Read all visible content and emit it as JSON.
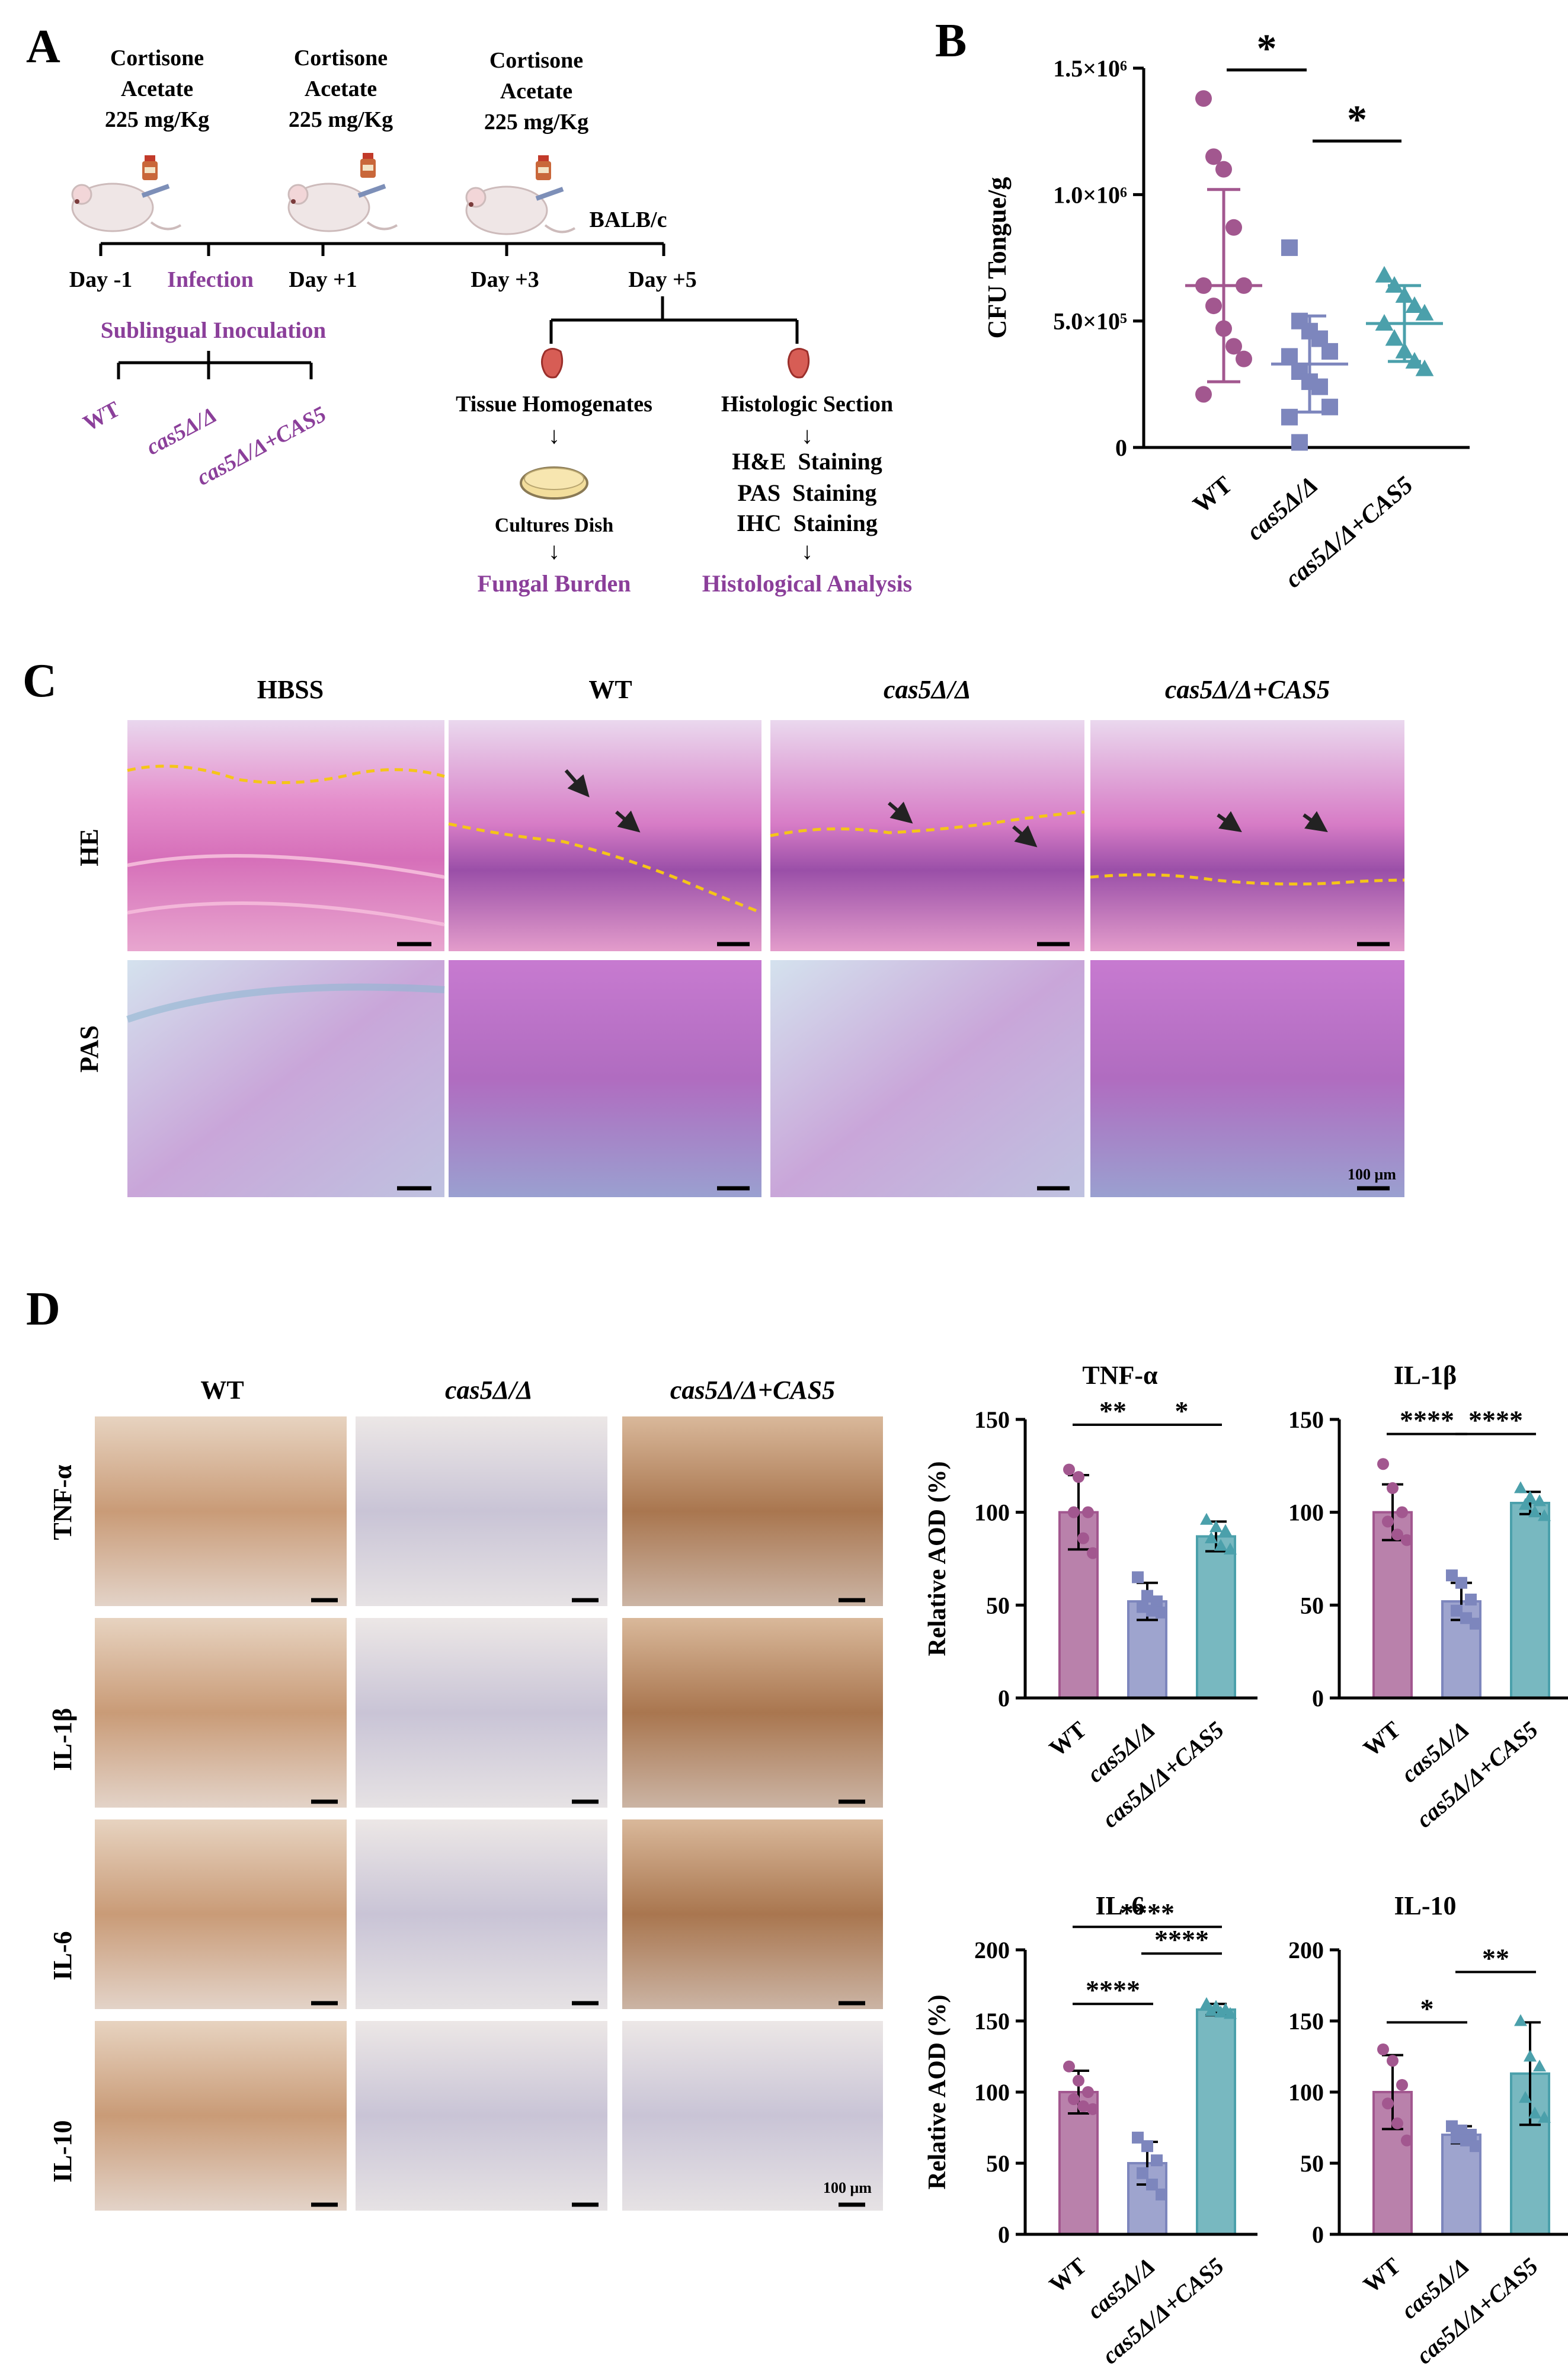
{
  "panel_letters": {
    "a": "A",
    "b": "B",
    "c": "C",
    "d": "D"
  },
  "colors": {
    "wt": "#a2578f",
    "mutant": "#7d86bd",
    "complement": "#4ba0ab",
    "purple_text": "#8b3f9a",
    "dashed_line": "#f5c518"
  },
  "panel_a": {
    "injections": [
      {
        "line1": "Cortisone",
        "line2": "Acetate",
        "line3": "225 mg/Kg"
      },
      {
        "line1": "Cortisone",
        "line2": "Acetate",
        "line3": "225 mg/Kg"
      },
      {
        "line1": "Cortisone",
        "line2": "Acetate",
        "line3": "225 mg/Kg"
      }
    ],
    "strain": "BALB/c",
    "days": [
      "Day -1",
      "Day +1",
      "Day +3",
      "Day +5"
    ],
    "infection": "Infection",
    "route": "Sublingual Inoculation",
    "groups": [
      "WT",
      "cas5Δ/Δ",
      "cas5Δ/Δ+CAS5"
    ],
    "left_branch": {
      "title": "Tissue Homogenates",
      "step": "Cultures Dish",
      "result": "Fungal Burden"
    },
    "right_branch": {
      "title": "Histologic Section",
      "steps": [
        "H&E  Staining",
        "PAS  Staining",
        "IHC  Staining"
      ],
      "result": "Histological Analysis"
    },
    "arrow_glyph": "↓",
    "icons": [
      "cortisone-vial-icon",
      "mouse-icon",
      "tongue-icon",
      "culture-dish-icon"
    ]
  },
  "panel_c": {
    "columns": [
      "HBSS",
      "WT",
      "cas5Δ/Δ",
      "cas5Δ/Δ+CAS5"
    ],
    "rows": [
      "HE",
      "PAS"
    ],
    "scale_label": "100 μm"
  },
  "panel_d_images": {
    "columns": [
      "WT",
      "cas5Δ/Δ",
      "cas5Δ/Δ+CAS5"
    ],
    "rows": [
      "TNF-α",
      "IL-1β",
      "IL-6",
      "IL-10"
    ],
    "scale_label": "100 μm"
  },
  "chart_data": [
    {
      "id": "B",
      "type": "scatter",
      "ylabel": "CFU Tongue/g",
      "ylim": [
        0,
        1500000
      ],
      "yticks": [
        "0",
        "5.0×10⁵",
        "1.0×10⁶",
        "1.5×10⁶"
      ],
      "yticks_values": [
        0,
        500000,
        1000000,
        1500000
      ],
      "categories": [
        "WT",
        "cas5Δ/Δ",
        "cas5Δ/Δ+CAS5"
      ],
      "means": [
        640000,
        330000,
        490000
      ],
      "sd": [
        380000,
        190000,
        150000
      ],
      "points": [
        [
          1380000,
          1150000,
          1100000,
          870000,
          640000,
          640000,
          560000,
          470000,
          400000,
          350000,
          210000
        ],
        [
          790000,
          500000,
          460000,
          430000,
          380000,
          360000,
          300000,
          260000,
          240000,
          160000,
          120000,
          20000
        ],
        [
          680000,
          640000,
          600000,
          560000,
          530000,
          490000,
          430000,
          380000,
          340000,
          310000
        ]
      ],
      "significance": [
        {
          "from": 0,
          "to": 1,
          "label": "*"
        },
        {
          "from": 1,
          "to": 2,
          "label": "*"
        }
      ]
    },
    {
      "id": "TNF",
      "type": "bar",
      "title": "TNF-α",
      "ylabel": "Relative AOD (%)",
      "ylim": [
        0,
        150
      ],
      "yticks": [
        0,
        50,
        100,
        150
      ],
      "categories": [
        "WT",
        "cas5Δ/Δ",
        "cas5Δ/Δ+CAS5"
      ],
      "values": [
        100,
        52,
        87
      ],
      "sd": [
        20,
        10,
        8
      ],
      "points": [
        [
          123,
          119,
          100,
          100,
          86,
          78
        ],
        [
          65,
          55,
          52,
          49,
          47,
          46
        ],
        [
          96,
          92,
          90,
          86,
          82,
          80
        ]
      ],
      "significance": [
        {
          "from": 0,
          "to": 1,
          "label": "**",
          "level": 1
        },
        {
          "from": 1,
          "to": 2,
          "label": "*",
          "level": 1
        }
      ]
    },
    {
      "id": "IL1b",
      "type": "bar",
      "title": "IL-1β",
      "ylabel": "",
      "ylim": [
        0,
        150
      ],
      "yticks": [
        0,
        50,
        100,
        150
      ],
      "categories": [
        "WT",
        "cas5Δ/Δ",
        "cas5Δ/Δ+CAS5"
      ],
      "values": [
        100,
        52,
        105
      ],
      "sd": [
        15,
        10,
        6
      ],
      "points": [
        [
          126,
          113,
          100,
          95,
          88,
          85
        ],
        [
          66,
          62,
          53,
          47,
          43,
          40
        ],
        [
          113,
          108,
          106,
          104,
          100,
          98
        ]
      ],
      "significance": [
        {
          "from": 0,
          "to": 1,
          "label": "****",
          "level": 1
        },
        {
          "from": 1,
          "to": 2,
          "label": "****",
          "level": 1
        }
      ]
    },
    {
      "id": "IL6",
      "type": "bar",
      "title": "IL-6",
      "ylabel": "Relative AOD (%)",
      "ylim": [
        0,
        200
      ],
      "yticks": [
        0,
        50,
        100,
        150,
        200
      ],
      "categories": [
        "WT",
        "cas5Δ/Δ",
        "cas5Δ/Δ+CAS5"
      ],
      "values": [
        100,
        50,
        158
      ],
      "sd": [
        15,
        15,
        4
      ],
      "points": [
        [
          118,
          108,
          100,
          95,
          90,
          88
        ],
        [
          68,
          62,
          52,
          43,
          35,
          28
        ],
        [
          162,
          160,
          158,
          157,
          156,
          155
        ]
      ],
      "significance": [
        {
          "from": 0,
          "to": 2,
          "label": "****",
          "level": 2
        },
        {
          "from": 1,
          "to": 2,
          "label": "****",
          "level": 1
        },
        {
          "from": 0,
          "to": 1,
          "label": "****",
          "level": 0
        }
      ]
    },
    {
      "id": "IL10",
      "type": "bar",
      "title": "IL-10",
      "ylabel": "",
      "ylim": [
        0,
        200
      ],
      "yticks": [
        0,
        50,
        100,
        150,
        200
      ],
      "categories": [
        "WT",
        "cas5Δ/Δ",
        "cas5Δ/Δ+CAS5"
      ],
      "values": [
        100,
        70,
        113
      ],
      "sd": [
        26,
        6,
        36
      ],
      "points": [
        [
          130,
          122,
          105,
          92,
          78,
          66
        ],
        [
          76,
          73,
          70,
          68,
          66,
          62
        ],
        [
          150,
          125,
          118,
          96,
          85,
          82
        ]
      ],
      "significance": [
        {
          "from": 0,
          "to": 1,
          "label": "*",
          "level": 0
        },
        {
          "from": 1,
          "to": 2,
          "label": "**",
          "level": 1
        }
      ]
    }
  ]
}
